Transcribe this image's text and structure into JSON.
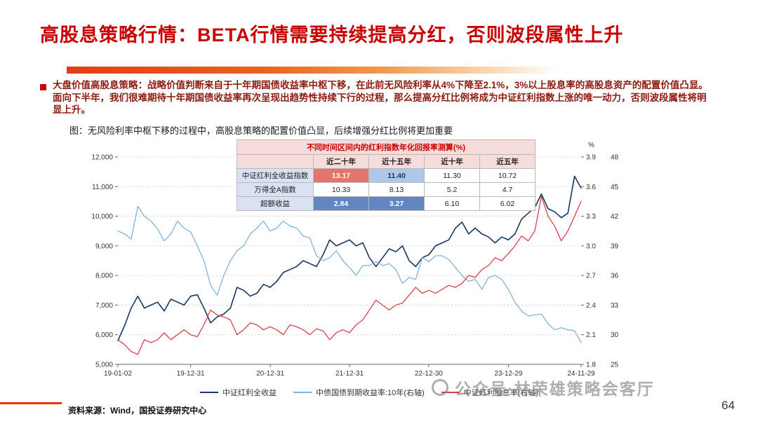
{
  "palette": {
    "title_red": "#C80000",
    "body_red": "#8C1A10",
    "accent_orange": "#EC611C",
    "cell_red": "#E2766B",
    "cell_blue": "#6286C2",
    "cell_lightblue": "#AFC7E8",
    "table_pink": "#F6DCDA",
    "table_blue_label": "#D9E1F2"
  },
  "slide": {
    "title": "高股息策略行情：BETA行情需要持续提高分红，否则波段属性上升",
    "bullet_text": "大盘价值高股息策略：战略价值判断来自于十年期国债收益率中枢下移，在此前无风险利率从4%下降至2.1%，3%以上股息率的高股息资产的配置价值凸显。面向下半年，我们很难期待十年期国债收益率再次呈现出趋势性持续下行的过程，那么提高分红比例将成为中证红利指数上涨的唯一动力，否则波段属性将明显上升。",
    "chart_caption": "图：无风险利率中枢下移的过程中，高股息策略的配置价值凸显，后续增强分红比例将更加重要",
    "source": "资料来源：Wind，国投证券研究中心",
    "page_number": "64",
    "watermark": "公众号·林荣雄策略会客厅"
  },
  "table": {
    "title": "不同时间区间内的红利指数年化回报率测算(%)",
    "columns": [
      "",
      "近二十年",
      "近十五年",
      "近十年",
      "近五年"
    ],
    "rows": [
      {
        "label": "中证红利全收益指数",
        "values": [
          "13.17",
          "11.40",
          "11.30",
          "10.72"
        ],
        "highlight": [
          "red",
          "lightblue",
          null,
          null
        ]
      },
      {
        "label": "万得全A指数",
        "values": [
          "10.33",
          "8.13",
          "5.2",
          "4.7"
        ],
        "highlight": [
          null,
          null,
          null,
          null
        ]
      },
      {
        "label": "超额收益",
        "values": [
          "2.84",
          "3.27",
          "6.10",
          "6.02"
        ],
        "highlight": [
          "blue",
          "blue",
          null,
          null
        ]
      }
    ]
  },
  "chart_data": {
    "type": "line",
    "title": "",
    "xlabel": "",
    "ylabel": "",
    "grid": "horizontal-dashed",
    "legend_position": "bottom",
    "x_tick_labels": [
      "19-01-02",
      "19-12-31",
      "20-12-31",
      "21-12-31",
      "22-12-30",
      "23-12-29",
      "24-11-29"
    ],
    "x_tick_pos": [
      0,
      0.157,
      0.329,
      0.5,
      0.671,
      0.843,
      1
    ],
    "left_axis": {
      "min": 5000,
      "max": 12000,
      "tick_labels": [
        "12,000",
        "11,000",
        "10,000",
        "9,000",
        "8,000",
        "7,000",
        "6,000",
        "5,000"
      ]
    },
    "right_axis_pct": {
      "min": 1.8,
      "max": 3.9,
      "unit": "%",
      "tick_labels": [
        "3.9",
        "3.6",
        "3.3",
        "3.0",
        "2.7",
        "2.4",
        "2.1",
        "1.8"
      ]
    },
    "right_axis_count": {
      "tick_labels": [
        "48",
        "45",
        "42",
        "39",
        "36",
        "33",
        "30",
        "25"
      ]
    },
    "series": [
      {
        "name": "中证红利全收益",
        "color": "#17375E",
        "axis": "left",
        "values": [
          5800,
          6300,
          6900,
          7300,
          6900,
          7000,
          7100,
          6800,
          7200,
          7100,
          7000,
          7300,
          7350,
          6900,
          6400,
          6600,
          6700,
          6900,
          7600,
          7500,
          7300,
          7400,
          7700,
          7600,
          7800,
          8100,
          8200,
          8300,
          8500,
          8400,
          8300,
          8700,
          9200,
          9000,
          9100,
          9200,
          9000,
          9100,
          8600,
          8300,
          8600,
          8900,
          8800,
          9000,
          8500,
          8300,
          8600,
          8700,
          9000,
          9100,
          9200,
          9600,
          9800,
          9400,
          9600,
          9400,
          9300,
          9100,
          9300,
          9200,
          9400,
          9900,
          10100,
          10300,
          10750,
          10250,
          10150,
          9950,
          10100,
          11350,
          10950
        ]
      },
      {
        "name": "中债国债到期收益率:10年(右轴)",
        "color": "#7EB3DC",
        "axis": "pct",
        "values": [
          3.15,
          3.12,
          3.07,
          3.4,
          3.3,
          3.25,
          3.17,
          3.05,
          3.12,
          3.25,
          3.18,
          3.14,
          3.0,
          2.85,
          2.6,
          2.5,
          2.7,
          2.85,
          2.95,
          3.0,
          3.12,
          3.18,
          3.25,
          3.15,
          3.18,
          3.25,
          3.2,
          3.18,
          3.1,
          3.08,
          2.9,
          2.85,
          2.88,
          2.95,
          2.85,
          2.78,
          2.7,
          2.8,
          2.8,
          2.84,
          2.8,
          2.82,
          2.76,
          2.62,
          2.68,
          2.66,
          2.88,
          2.84,
          2.9,
          2.9,
          2.86,
          2.78,
          2.7,
          2.64,
          2.66,
          2.56,
          2.68,
          2.7,
          2.66,
          2.56,
          2.43,
          2.34,
          2.29,
          2.3,
          2.31,
          2.21,
          2.15,
          2.17,
          2.15,
          2.14,
          2.02
        ]
      },
      {
        "name": "中证红利股息率(右轴)",
        "color": "#D8414D",
        "axis": "pct",
        "values": [
          2.05,
          2.0,
          1.93,
          1.9,
          2.05,
          2.02,
          2.05,
          2.12,
          2.05,
          2.1,
          2.15,
          2.1,
          2.08,
          2.2,
          2.35,
          2.3,
          2.28,
          2.25,
          2.1,
          2.15,
          2.22,
          2.2,
          2.15,
          2.18,
          2.15,
          2.1,
          2.2,
          2.18,
          2.15,
          2.1,
          2.16,
          2.14,
          2.05,
          2.12,
          2.15,
          2.12,
          2.2,
          2.25,
          2.35,
          2.45,
          2.4,
          2.35,
          2.4,
          2.42,
          2.5,
          2.58,
          2.52,
          2.55,
          2.52,
          2.56,
          2.6,
          2.58,
          2.62,
          2.7,
          2.68,
          2.76,
          2.8,
          2.88,
          2.85,
          2.92,
          3.0,
          3.1,
          3.05,
          3.15,
          3.5,
          3.3,
          3.2,
          3.05,
          3.15,
          3.3,
          3.45
        ]
      }
    ]
  }
}
